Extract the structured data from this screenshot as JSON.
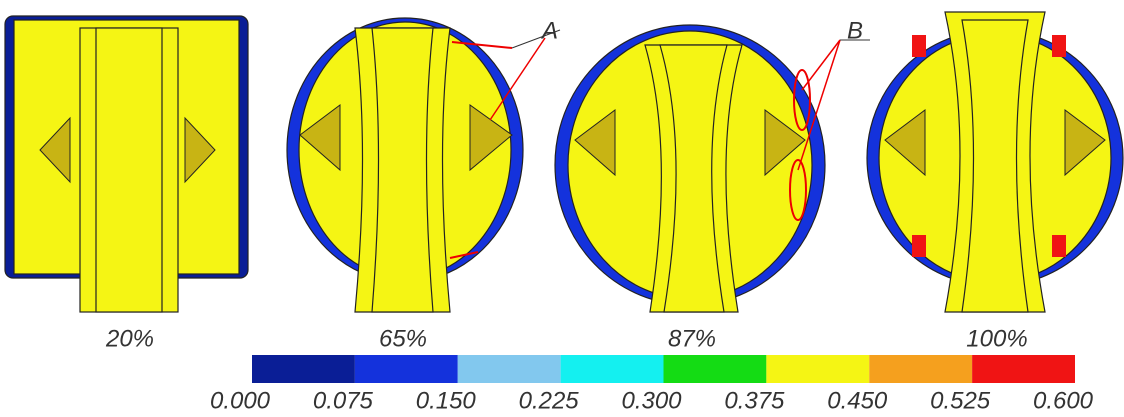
{
  "panels": [
    {
      "label": "20%"
    },
    {
      "label": "65%"
    },
    {
      "label": "87%"
    },
    {
      "label": "100%"
    }
  ],
  "annotations": [
    "A",
    "B"
  ],
  "colorbar": {
    "colors": [
      "#0a1e96",
      "#1432dc",
      "#82c8ee",
      "#14f0f0",
      "#14dc14",
      "#f5f514",
      "#f5a01e",
      "#f01414"
    ],
    "ticks": [
      "0.000",
      "0.075",
      "0.150",
      "0.225",
      "0.300",
      "0.375",
      "0.450",
      "0.525",
      "0.600"
    ]
  }
}
